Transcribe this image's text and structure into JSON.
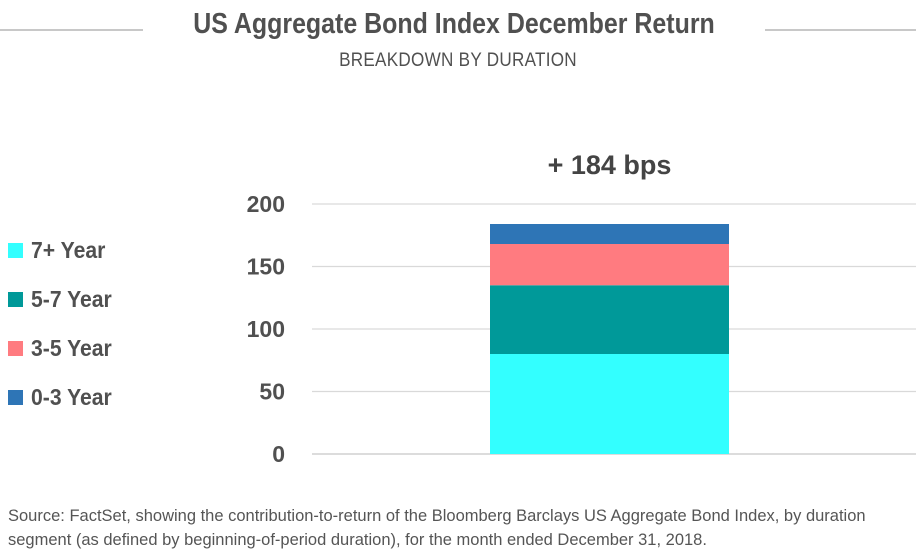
{
  "header": {
    "title": "US Aggregate Bond Index December Return",
    "subtitle": "BREAKDOWN BY DURATION"
  },
  "chart_data": {
    "type": "bar",
    "stacked": true,
    "title": "US Aggregate Bond Index December Return",
    "subtitle": "BREAKDOWN BY DURATION",
    "categories": [
      ""
    ],
    "series": [
      {
        "name": "7+ Year",
        "values": [
          80
        ],
        "color": "#33ffff"
      },
      {
        "name": "5-7 Year",
        "values": [
          55
        ],
        "color": "#009999"
      },
      {
        "name": "3-5 Year",
        "values": [
          33
        ],
        "color": "#ff7b80"
      },
      {
        "name": "0-3 Year",
        "values": [
          16
        ],
        "color": "#2e75b6"
      }
    ],
    "total_label": "+ 184 bps",
    "ylim": [
      0,
      200
    ],
    "yticks": [
      "0",
      "50",
      "100",
      "150",
      "200"
    ],
    "grid": true,
    "legend": "left"
  },
  "source_note": "Source: FactSet, showing the contribution-to-return of the Bloomberg Barclays US Aggregate Bond Index, by duration segment (as defined by beginning-of-period duration), for the month ended December 31, 2018."
}
